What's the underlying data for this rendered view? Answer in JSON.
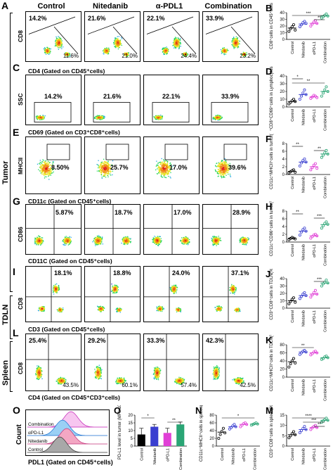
{
  "columns": [
    "Control",
    "Nitedanib",
    "α-PDL1",
    "Combination"
  ],
  "side_labels": {
    "tumor": "Tumor",
    "tdln": "TDLN",
    "spleen": "Spleen"
  },
  "panels": {
    "A": {
      "letter": "A",
      "ylabel": "CD8",
      "upper": [
        "14.2%",
        "21.6%",
        "22.1%",
        "33.9%"
      ],
      "lower": [
        "11.6%",
        "21.0%",
        "24.4%",
        "23.2%"
      ],
      "xlabel": "CD4 (Gated on CD45⁺cells)"
    },
    "C": {
      "letter": "C",
      "ylabel": "SSC",
      "values": [
        "14.2%",
        "21.6%",
        "22.1%",
        "33.9%"
      ],
      "xlabel": "CD69 (Gated on CD3⁺CD8⁺cells)"
    },
    "E": {
      "letter": "E",
      "ylabel": "MHCII",
      "values": [
        "8.50%",
        "25.7%",
        "17.0%",
        "39.6%"
      ],
      "xlabel": "CD11c (Gated on CD45⁺cells)"
    },
    "G": {
      "letter": "G",
      "ylabel": "CD86",
      "values": [
        "5.87%",
        "18.7%",
        "17.0%",
        "28.9%"
      ],
      "xlabel": "CD11C (Gated on CD45⁺cells)"
    },
    "I": {
      "letter": "I",
      "ylabel": "CD8",
      "values": [
        "18.1%",
        "18.8%",
        "24.0%",
        "37.1%"
      ],
      "xlabel": "CD3 (Gated on CD45⁺cells)"
    },
    "L": {
      "letter": "L",
      "ylabel": "CD8",
      "upper": [
        "25.4%",
        "29.2%",
        "33.3%",
        "42.3%"
      ],
      "lower": [
        "43.5%",
        "60.1%",
        "57.4%",
        "42.5%"
      ],
      "xlabel": "CD4 (Gated on CD45⁺CD3⁺cells)"
    },
    "O": {
      "letter": "O",
      "ylabel": "Count",
      "xlabel": "PDL1 (Gated on CD45⁺cells)",
      "legend": [
        "Combination",
        "αPD-L1",
        "Nitedanib",
        "Control"
      ]
    }
  },
  "groups": [
    "Control",
    "Nitedanib",
    "αPD-L1",
    "Combination"
  ],
  "colors": {
    "Control": "#000000",
    "Nitedanib": "#3a3fd0",
    "αPD-L1": "#e03fd6",
    "Combination": "#2aa575"
  },
  "chart_data": [
    {
      "panel": "B",
      "type": "scatter",
      "ylabel": "CD8⁺cells in CD45⁺cells",
      "ylim": [
        0,
        40
      ],
      "yticks": [
        "0",
        "10",
        "20",
        "30",
        "40"
      ],
      "categories": [
        "Control",
        "Nitedanib",
        "αPD-L1",
        "Combination"
      ],
      "means": [
        17,
        23,
        24,
        35
      ],
      "points": [
        [
          12,
          16,
          19,
          22,
          14
        ],
        [
          19,
          22,
          25,
          27,
          24
        ],
        [
          20,
          23,
          26,
          28,
          24
        ],
        [
          32,
          34,
          36,
          38,
          35
        ]
      ],
      "sig": [
        {
          "from": 0,
          "to": 3,
          "label": "***"
        },
        {
          "from": 2,
          "to": 3,
          "label": "**"
        }
      ]
    },
    {
      "panel": "D",
      "type": "scatter",
      "ylabel": "CD3⁺CD8⁺CD69⁺cells in Lymphocytes in tumor(%)",
      "ylim": [
        0,
        40
      ],
      "yticks": [
        "0",
        "10",
        "20",
        "30",
        "40"
      ],
      "categories": [
        "Control",
        "Nitedanib",
        "αPD-L1",
        "Combination"
      ],
      "means": [
        7,
        16,
        13,
        20
      ],
      "points": [
        [
          4,
          6,
          8,
          10,
          7
        ],
        [
          10,
          14,
          18,
          22,
          16
        ],
        [
          11,
          13,
          15,
          14,
          12
        ],
        [
          14,
          18,
          22,
          26,
          20
        ]
      ],
      "sig": [
        {
          "from": 0,
          "to": 1,
          "label": "*"
        },
        {
          "from": 0,
          "to": 3,
          "label": "**"
        }
      ]
    },
    {
      "panel": "F",
      "type": "scatter",
      "ylabel": "CD11c⁺MHCII⁺cells in tumor(%)",
      "ylim": [
        0,
        8
      ],
      "yticks": [
        "0",
        "2",
        "4",
        "6",
        "8"
      ],
      "categories": [
        "Control",
        "Nitedanib",
        "αPD-L1",
        "Combination"
      ],
      "means": [
        0.8,
        3.2,
        2.0,
        5.3
      ],
      "points": [
        [
          0.4,
          0.7,
          1.0,
          1.2,
          0.6
        ],
        [
          2.2,
          3.0,
          3.6,
          4.0,
          3.2
        ],
        [
          1.2,
          1.8,
          2.4,
          2.8,
          1.6
        ],
        [
          4.4,
          5.0,
          5.6,
          6.2,
          5.3
        ]
      ],
      "sig": [
        {
          "from": 0,
          "to": 1,
          "label": "**"
        },
        {
          "from": 2,
          "to": 3,
          "label": "**"
        }
      ]
    },
    {
      "panel": "H",
      "type": "scatter",
      "ylabel": "CD11c⁺CD86⁺cells in tumor(%)",
      "ylim": [
        0,
        8
      ],
      "yticks": [
        "0",
        "2",
        "4",
        "6",
        "8"
      ],
      "categories": [
        "Control",
        "Nitedanib",
        "αPD-L1",
        "Combination"
      ],
      "means": [
        1.0,
        2.8,
        1.6,
        4.5
      ],
      "points": [
        [
          0.6,
          0.9,
          1.2,
          1.0,
          0.8
        ],
        [
          1.8,
          2.6,
          3.2,
          3.6,
          2.8
        ],
        [
          1.0,
          1.4,
          1.8,
          2.0,
          1.6
        ],
        [
          3.6,
          4.2,
          4.8,
          5.2,
          4.6
        ]
      ],
      "sig": [
        {
          "from": 0,
          "to": 1,
          "label": "**"
        },
        {
          "from": 2,
          "to": 3,
          "label": "***"
        }
      ]
    },
    {
      "panel": "J",
      "type": "scatter",
      "ylabel": "CD3⁺CD8⁺cells in TDLN(%)",
      "ylim": [
        0,
        40
      ],
      "yticks": [
        "0",
        "10",
        "20",
        "30",
        "40"
      ],
      "categories": [
        "Control",
        "Nitedanib",
        "αPD-L1",
        "Combination"
      ],
      "means": [
        10,
        17,
        19,
        34
      ],
      "points": [
        [
          6,
          9,
          12,
          14,
          8
        ],
        [
          13,
          16,
          19,
          21,
          17
        ],
        [
          15,
          18,
          21,
          24,
          19
        ],
        [
          30,
          33,
          35,
          38,
          34
        ]
      ],
      "sig": [
        {
          "from": 2,
          "to": 3,
          "label": "***"
        }
      ]
    },
    {
      "panel": "K",
      "type": "scatter",
      "ylabel": "CD11c⁺MHCII⁺cells in TDLN(%)",
      "ylim": [
        0,
        80
      ],
      "yticks": [
        "0",
        "20",
        "40",
        "60",
        "80"
      ],
      "categories": [
        "Control",
        "Nitedanib",
        "αPD-L1",
        "Combination"
      ],
      "means": [
        38,
        62,
        60,
        48
      ],
      "points": [
        [
          25,
          33,
          40,
          46,
          35
        ],
        [
          56,
          60,
          64,
          66,
          62
        ],
        [
          55,
          58,
          62,
          64,
          60
        ],
        [
          44,
          46,
          50,
          52,
          48
        ]
      ],
      "sig": [
        {
          "from": 0,
          "to": 2,
          "label": "**"
        }
      ]
    },
    {
      "panel": "O",
      "type": "bar",
      "ylabel": "PD-L1 level in tumor (MFI×10³)",
      "ylim": [
        0,
        20
      ],
      "yticks": [
        "0",
        "5",
        "10",
        "15",
        "20"
      ],
      "categories": [
        "Control",
        "Nitedanib",
        "αPD-L1",
        "Combination"
      ],
      "values": [
        7.5,
        12.5,
        8.5,
        14.0
      ],
      "errors": [
        4,
        1.5,
        3,
        1.5
      ],
      "sig": [
        {
          "from": 0,
          "to": 1,
          "label": "*"
        },
        {
          "from": 2,
          "to": 3,
          "label": "**"
        }
      ]
    },
    {
      "panel": "N",
      "type": "scatter",
      "ylabel": "CD11c⁺MHCII⁺cells in spleen(%)",
      "ylim": [
        0,
        80
      ],
      "yticks": [
        "0",
        "20",
        "40",
        "60",
        "80"
      ],
      "categories": [
        "Control",
        "Nitedanib",
        "αPD-L1",
        "Combination"
      ],
      "means": [
        36,
        50,
        56,
        57
      ],
      "points": [
        [
          20,
          30,
          38,
          46,
          34
        ],
        [
          44,
          48,
          52,
          56,
          50
        ],
        [
          50,
          54,
          58,
          60,
          56
        ],
        [
          54,
          56,
          58,
          60,
          57
        ]
      ],
      "sig": [
        {
          "from": 0,
          "to": 3,
          "label": "*"
        }
      ]
    },
    {
      "panel": "M",
      "type": "scatter",
      "ylabel": "CD3⁺CD8⁺cells in spleen(%)",
      "ylim": [
        0,
        15
      ],
      "yticks": [
        "0",
        "5",
        "10",
        "15"
      ],
      "categories": [
        "Control",
        "Nitedanib",
        "αPD-L1",
        "Combination"
      ],
      "means": [
        5.5,
        8.0,
        9.0,
        12.5
      ],
      "points": [
        [
          4,
          5,
          6,
          7,
          5.5
        ],
        [
          6.5,
          7.5,
          8.5,
          9.5,
          8
        ],
        [
          8,
          8.8,
          9.5,
          10,
          9
        ],
        [
          11.5,
          12.2,
          12.8,
          13.5,
          12.5
        ]
      ],
      "sig": [
        {
          "from": 0,
          "to": 3,
          "label": "****"
        },
        {
          "from": 1,
          "to": 3,
          "label": "***"
        },
        {
          "from": 2,
          "to": 3,
          "label": "**"
        }
      ]
    }
  ]
}
